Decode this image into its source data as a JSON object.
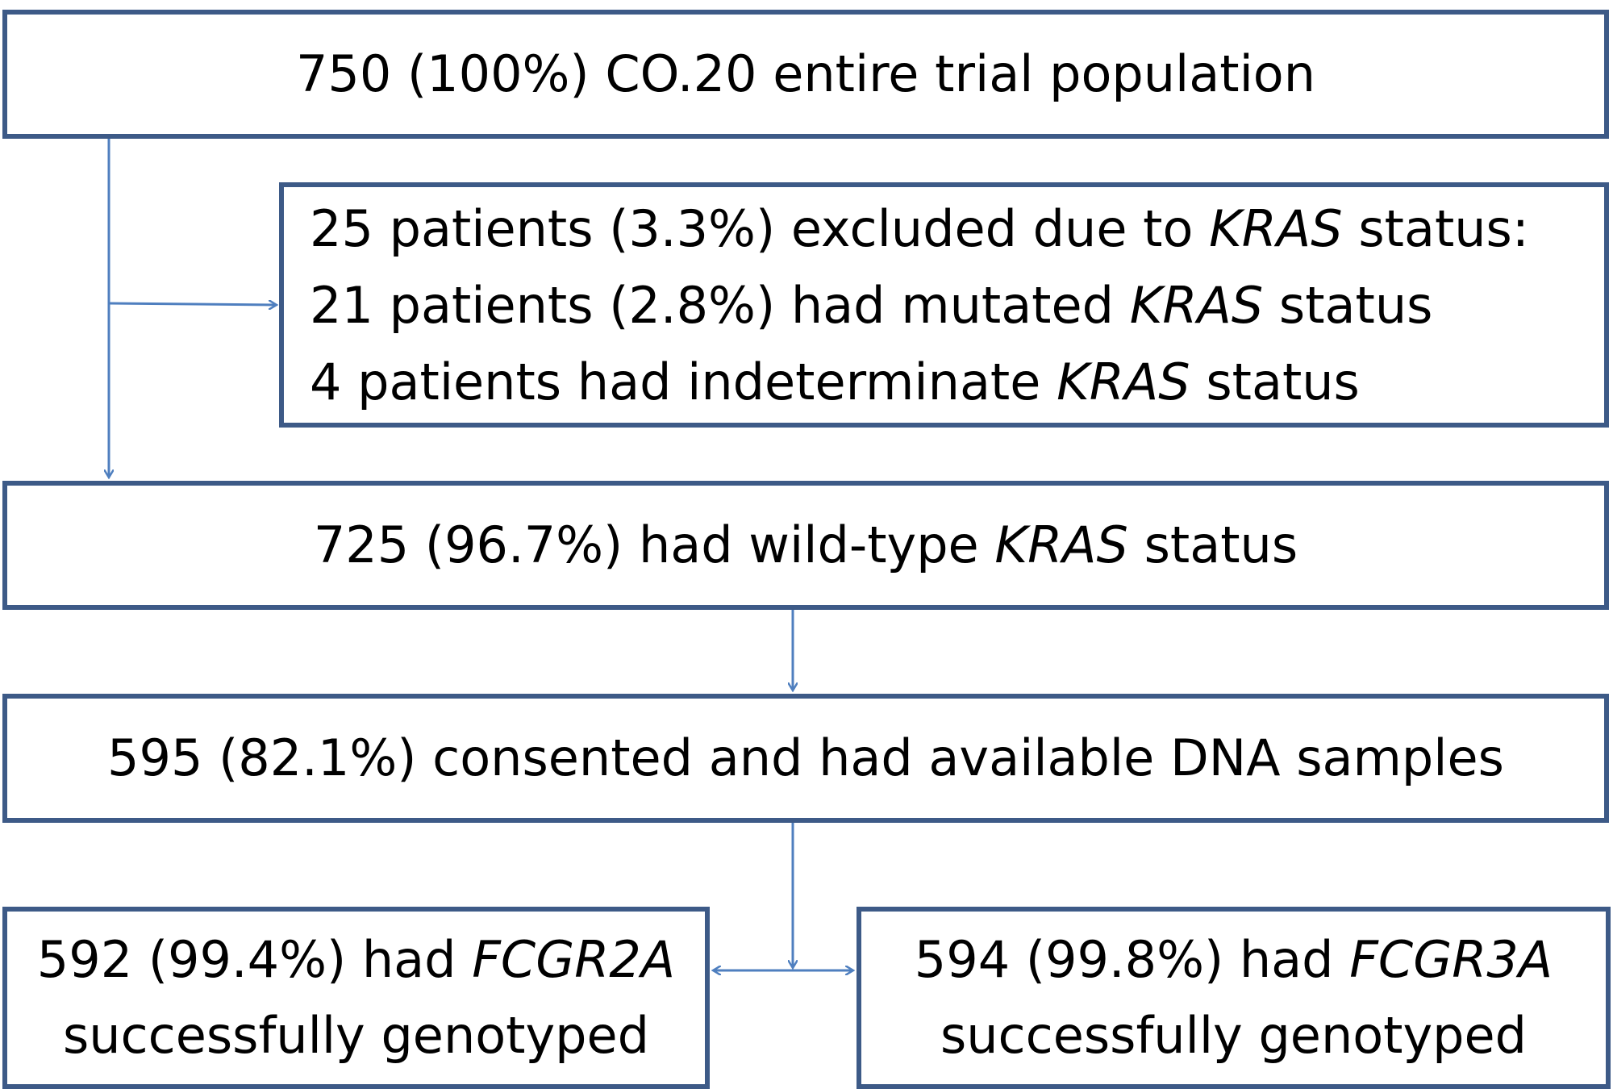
{
  "boxes": {
    "entire": {
      "text": "750 (100%) CO.20 entire trial population"
    },
    "excluded": {
      "line1_pre": "25 patients (3.3%) excluded due to ",
      "line1_gene": "KRAS",
      "line1_post": " status:",
      "line2_pre": "21 patients (2.8%) had mutated ",
      "line2_gene": "KRAS",
      "line2_post": " status",
      "line3_pre": "4 patients had indeterminate ",
      "line3_gene": "KRAS",
      "line3_post": " status"
    },
    "wildtype": {
      "pre": "725 (96.7%) had wild-type ",
      "gene": "KRAS",
      "post": " status"
    },
    "consented": {
      "text": "595 (82.1%) consented and had available DNA samples"
    },
    "fcgr2a": {
      "line1_pre": "592 (99.4%) had ",
      "line1_gene": "FCGR2A",
      "line2": "successfully genotyped"
    },
    "fcgr3a": {
      "line1_pre": "594 (99.8%) had ",
      "line1_gene": "FCGR3A",
      "line2": "successfully genotyped"
    }
  },
  "colors": {
    "box_border": "#3d5a87",
    "arrow": "#4f7fbf"
  }
}
